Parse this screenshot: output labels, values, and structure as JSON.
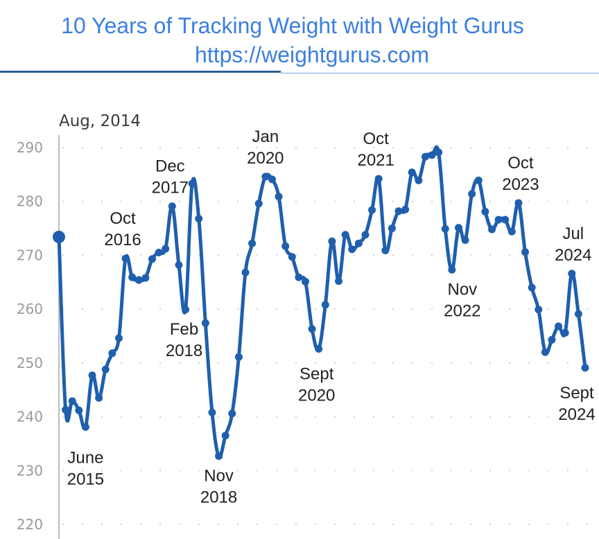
{
  "header": {
    "title": "10 Years of Tracking Weight with Weight Gurus",
    "subtitle": "https://weightgurus.com"
  },
  "chart_data": {
    "type": "line",
    "ylim": [
      220,
      290
    ],
    "ytick_labels": [
      "290",
      "280",
      "270",
      "260",
      "250",
      "240",
      "230",
      "220"
    ],
    "grid": true,
    "start_label": "Aug, 2014",
    "line_color": "#1f5fad",
    "series": [
      {
        "values": [
          273.4,
          241.3,
          242.9,
          241.2,
          238.1,
          247.7,
          243.5,
          248.8,
          251.8,
          254.6,
          269.4,
          265.9,
          265.4,
          265.8,
          269.3,
          270.5,
          271.2,
          279.1,
          268.2,
          259.9,
          283.3,
          276.8,
          257.4,
          240.8,
          232.7,
          236.5,
          240.6,
          251.1,
          266.8,
          272.2,
          279.6,
          284.6,
          284.1,
          280.9,
          271.7,
          269.7,
          265.9,
          265.1,
          256.3,
          252.6,
          260.8,
          272.6,
          265.2,
          273.8,
          271.1,
          272.2,
          273.8,
          278.4,
          284.2,
          270.9,
          275.0,
          278.2,
          278.5,
          285.4,
          283.9,
          288.3,
          288.6,
          289.1,
          274.9,
          267.3,
          275.1,
          272.8,
          281.4,
          283.9,
          278.1,
          274.8,
          276.6,
          276.6,
          274.4,
          279.7,
          270.6,
          264.0,
          259.9,
          252.0,
          254.3,
          256.8,
          255.6,
          266.6,
          259.1,
          249.1
        ]
      }
    ],
    "annotations": [
      {
        "lines": [
          "June",
          "2015"
        ],
        "at": 4
      },
      {
        "lines": [
          "Oct",
          "2016"
        ],
        "at": 10
      },
      {
        "lines": [
          "Dec",
          "2017"
        ],
        "at": 17
      },
      {
        "lines": [
          "Feb",
          "2018"
        ],
        "at": 19
      },
      {
        "lines": [
          "Nov",
          "2018"
        ],
        "at": 24
      },
      {
        "lines": [
          "Jan",
          "2020"
        ],
        "at": 31
      },
      {
        "lines": [
          "Sept",
          "2020"
        ],
        "at": 39
      },
      {
        "lines": [
          "Oct",
          "2021"
        ],
        "at": 48
      },
      {
        "lines": [
          "Nov",
          "2022"
        ],
        "at": 59
      },
      {
        "lines": [
          "Oct",
          "2023"
        ],
        "at": 69
      },
      {
        "lines": [
          "Jul",
          "2024"
        ],
        "at": 77
      },
      {
        "lines": [
          "Sept",
          "2024"
        ],
        "at": 79
      }
    ]
  }
}
